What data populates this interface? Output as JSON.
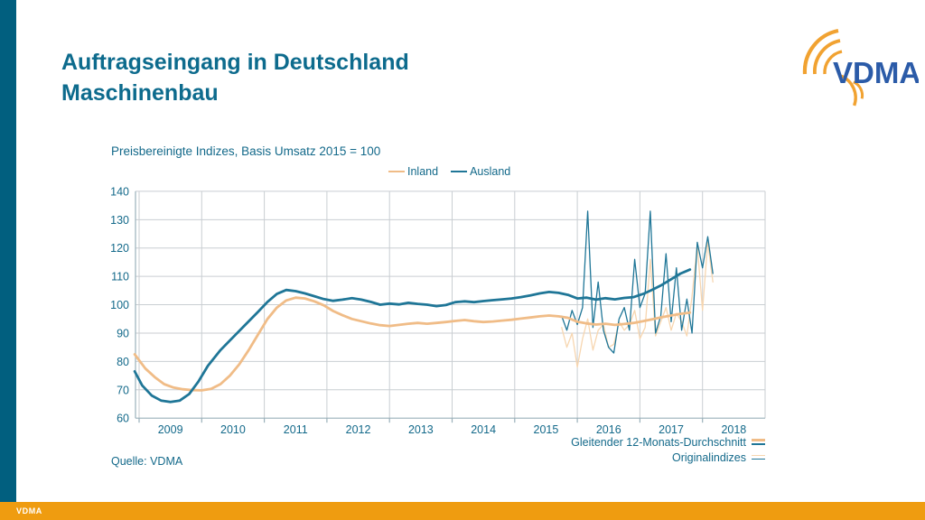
{
  "page": {
    "title_line1": "Auftragseingang in Deutschland",
    "title_line2": "Maschinenbau",
    "source": "Quelle: VDMA",
    "footer_brand": "VDMA",
    "logo_text": "VDMA"
  },
  "colors": {
    "teal_text": "#13698a",
    "teal_line": "#1f7697",
    "orange_thick": "#f0bc87",
    "orange_thin": "#f7d6b0",
    "sidebar_teal": "#015f7f",
    "footer_orange": "#ef9c10",
    "logo_orange": "#f1a231",
    "logo_blue": "#2b5ba8",
    "grid": "#c9ced2",
    "axis": "#9ab0ba"
  },
  "chart_data": {
    "type": "line",
    "title": "Preisbereinigte Indizes, Basis Umsatz 2015 = 100",
    "ylim": [
      60,
      140
    ],
    "y_step": 10,
    "x_ticks": [
      2009,
      2010,
      2011,
      2012,
      2013,
      2014,
      2015,
      2016,
      2017,
      2018
    ],
    "grid": true,
    "legend_top": [
      {
        "label": "Inland",
        "color_key": "orange_thick"
      },
      {
        "label": "Ausland",
        "color_key": "teal_line"
      }
    ],
    "legend_bottom": [
      {
        "label": "Gleitender 12-Monats-Durchschnitt",
        "style": "thick"
      },
      {
        "label": "Originalindizes",
        "style": "thin"
      }
    ],
    "series": [
      {
        "name": "Inland – gleitender 12-Monats-Durchschnitt",
        "style": "thick",
        "color_key": "orange_thick",
        "width": 2.8,
        "points": [
          [
            2008.93,
            82.5
          ],
          [
            2009.1,
            77.5
          ],
          [
            2009.25,
            74.5
          ],
          [
            2009.4,
            72
          ],
          [
            2009.55,
            70.8
          ],
          [
            2009.7,
            70.2
          ],
          [
            2009.85,
            69.9
          ],
          [
            2010,
            69.8
          ],
          [
            2010.15,
            70.3
          ],
          [
            2010.3,
            72
          ],
          [
            2010.45,
            75
          ],
          [
            2010.6,
            79
          ],
          [
            2010.75,
            84
          ],
          [
            2010.9,
            89.5
          ],
          [
            2011.05,
            95
          ],
          [
            2011.2,
            99
          ],
          [
            2011.35,
            101.5
          ],
          [
            2011.5,
            102.5
          ],
          [
            2011.65,
            102.2
          ],
          [
            2011.8,
            101.2
          ],
          [
            2011.95,
            99.8
          ],
          [
            2012.1,
            97.8
          ],
          [
            2012.25,
            96.3
          ],
          [
            2012.4,
            95
          ],
          [
            2012.55,
            94.2
          ],
          [
            2012.7,
            93.4
          ],
          [
            2012.85,
            92.8
          ],
          [
            2013,
            92.5
          ],
          [
            2013.15,
            92.9
          ],
          [
            2013.3,
            93.3
          ],
          [
            2013.45,
            93.6
          ],
          [
            2013.6,
            93.3
          ],
          [
            2013.75,
            93.6
          ],
          [
            2013.9,
            93.9
          ],
          [
            2014.05,
            94.3
          ],
          [
            2014.2,
            94.6
          ],
          [
            2014.35,
            94.2
          ],
          [
            2014.5,
            93.9
          ],
          [
            2014.65,
            94.1
          ],
          [
            2014.8,
            94.4
          ],
          [
            2014.95,
            94.7
          ],
          [
            2015.1,
            95.1
          ],
          [
            2015.25,
            95.5
          ],
          [
            2015.4,
            95.9
          ],
          [
            2015.55,
            96.2
          ],
          [
            2015.7,
            95.9
          ],
          [
            2015.85,
            95.4
          ],
          [
            2016,
            94
          ],
          [
            2016.15,
            93.4
          ],
          [
            2016.3,
            93
          ],
          [
            2016.45,
            93.3
          ],
          [
            2016.6,
            92.9
          ],
          [
            2016.75,
            93.2
          ],
          [
            2016.9,
            93.6
          ],
          [
            2017.05,
            94.2
          ],
          [
            2017.2,
            94.9
          ],
          [
            2017.35,
            95.6
          ],
          [
            2017.5,
            96.2
          ],
          [
            2017.65,
            96.8
          ],
          [
            2017.8,
            97.2
          ]
        ]
      },
      {
        "name": "Ausland – gleitender 12-Monats-Durchschnitt",
        "style": "thick",
        "color_key": "teal_line",
        "width": 2.8,
        "points": [
          [
            2008.93,
            76.5
          ],
          [
            2009.05,
            71.5
          ],
          [
            2009.2,
            68
          ],
          [
            2009.35,
            66.2
          ],
          [
            2009.5,
            65.7
          ],
          [
            2009.65,
            66.2
          ],
          [
            2009.8,
            68.5
          ],
          [
            2009.95,
            73
          ],
          [
            2010.1,
            78.5
          ],
          [
            2010.3,
            84
          ],
          [
            2010.5,
            88.5
          ],
          [
            2010.7,
            93
          ],
          [
            2010.9,
            97.5
          ],
          [
            2011.05,
            101
          ],
          [
            2011.2,
            103.8
          ],
          [
            2011.35,
            105.2
          ],
          [
            2011.5,
            104.8
          ],
          [
            2011.65,
            104
          ],
          [
            2011.8,
            103
          ],
          [
            2011.95,
            102
          ],
          [
            2012.1,
            101.4
          ],
          [
            2012.25,
            101.8
          ],
          [
            2012.4,
            102.3
          ],
          [
            2012.55,
            101.8
          ],
          [
            2012.7,
            101
          ],
          [
            2012.85,
            100
          ],
          [
            2013,
            100.4
          ],
          [
            2013.15,
            100.1
          ],
          [
            2013.3,
            100.7
          ],
          [
            2013.45,
            100.3
          ],
          [
            2013.6,
            100
          ],
          [
            2013.75,
            99.5
          ],
          [
            2013.9,
            99.9
          ],
          [
            2014.05,
            100.9
          ],
          [
            2014.2,
            101.2
          ],
          [
            2014.35,
            100.9
          ],
          [
            2014.5,
            101.3
          ],
          [
            2014.65,
            101.6
          ],
          [
            2014.8,
            101.9
          ],
          [
            2014.95,
            102.2
          ],
          [
            2015.1,
            102.7
          ],
          [
            2015.25,
            103.3
          ],
          [
            2015.4,
            104
          ],
          [
            2015.55,
            104.5
          ],
          [
            2015.7,
            104.2
          ],
          [
            2015.85,
            103.5
          ],
          [
            2016,
            102.2
          ],
          [
            2016.15,
            102.5
          ],
          [
            2016.3,
            101.8
          ],
          [
            2016.45,
            102.3
          ],
          [
            2016.6,
            101.9
          ],
          [
            2016.75,
            102.4
          ],
          [
            2016.9,
            102.7
          ],
          [
            2017.05,
            103.8
          ],
          [
            2017.2,
            105.3
          ],
          [
            2017.35,
            107
          ],
          [
            2017.5,
            109
          ],
          [
            2017.65,
            111
          ],
          [
            2017.8,
            112.4
          ]
        ]
      },
      {
        "name": "Inland – Originalindizes",
        "style": "thin",
        "color_key": "orange_thin",
        "width": 1.3,
        "x_start": 2015.75,
        "x_step": 0.08333,
        "values": [
          92,
          85,
          90,
          78,
          88,
          95,
          84,
          91,
          93,
          85,
          86,
          94,
          91,
          93,
          98,
          88,
          92,
          116,
          89,
          94,
          99,
          91,
          97,
          94,
          89,
          103,
          121,
          98,
          122,
          108
        ]
      },
      {
        "name": "Ausland – Originalindizes",
        "style": "thin",
        "color_key": "teal_line",
        "width": 1.3,
        "x_start": 2015.75,
        "x_step": 0.08333,
        "values": [
          96,
          91,
          98,
          93,
          99,
          133,
          92,
          108,
          91,
          85,
          83,
          95,
          99,
          91,
          116,
          99,
          104,
          133,
          90,
          96,
          118,
          94,
          113,
          91,
          102,
          90,
          122,
          113,
          124,
          111
        ]
      }
    ]
  }
}
